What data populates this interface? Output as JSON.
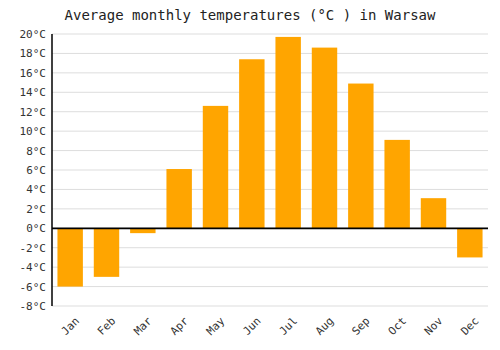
{
  "chart_data": {
    "type": "bar",
    "title": "Average monthly temperatures (°C ) in Warsaw",
    "categories": [
      "Jan",
      "Feb",
      "Mar",
      "Apr",
      "May",
      "Jun",
      "Jul",
      "Aug",
      "Sep",
      "Oct",
      "Nov",
      "Dec"
    ],
    "values": [
      -6.0,
      -5.0,
      -0.5,
      6.1,
      12.6,
      17.4,
      19.7,
      18.6,
      14.9,
      9.1,
      3.1,
      -3.0
    ],
    "color": "#FFA500",
    "ylim": [
      -8,
      20
    ],
    "yticks": [
      {
        "value": -8,
        "label": "-8°C"
      },
      {
        "value": -6,
        "label": "-6°C"
      },
      {
        "value": -4,
        "label": "-4°C"
      },
      {
        "value": -2,
        "label": "-2°C"
      },
      {
        "value": 0,
        "label": "0°C"
      },
      {
        "value": 2,
        "label": "2°C"
      },
      {
        "value": 4,
        "label": "4°C"
      },
      {
        "value": 6,
        "label": "6°C"
      },
      {
        "value": 8,
        "label": "8°C"
      },
      {
        "value": 10,
        "label": "10°C"
      },
      {
        "value": 12,
        "label": "12°C"
      },
      {
        "value": 14,
        "label": "14°C"
      },
      {
        "value": 16,
        "label": "16°C"
      },
      {
        "value": 18,
        "label": "18°C"
      },
      {
        "value": 20,
        "label": "20°C"
      }
    ],
    "grid": true
  }
}
